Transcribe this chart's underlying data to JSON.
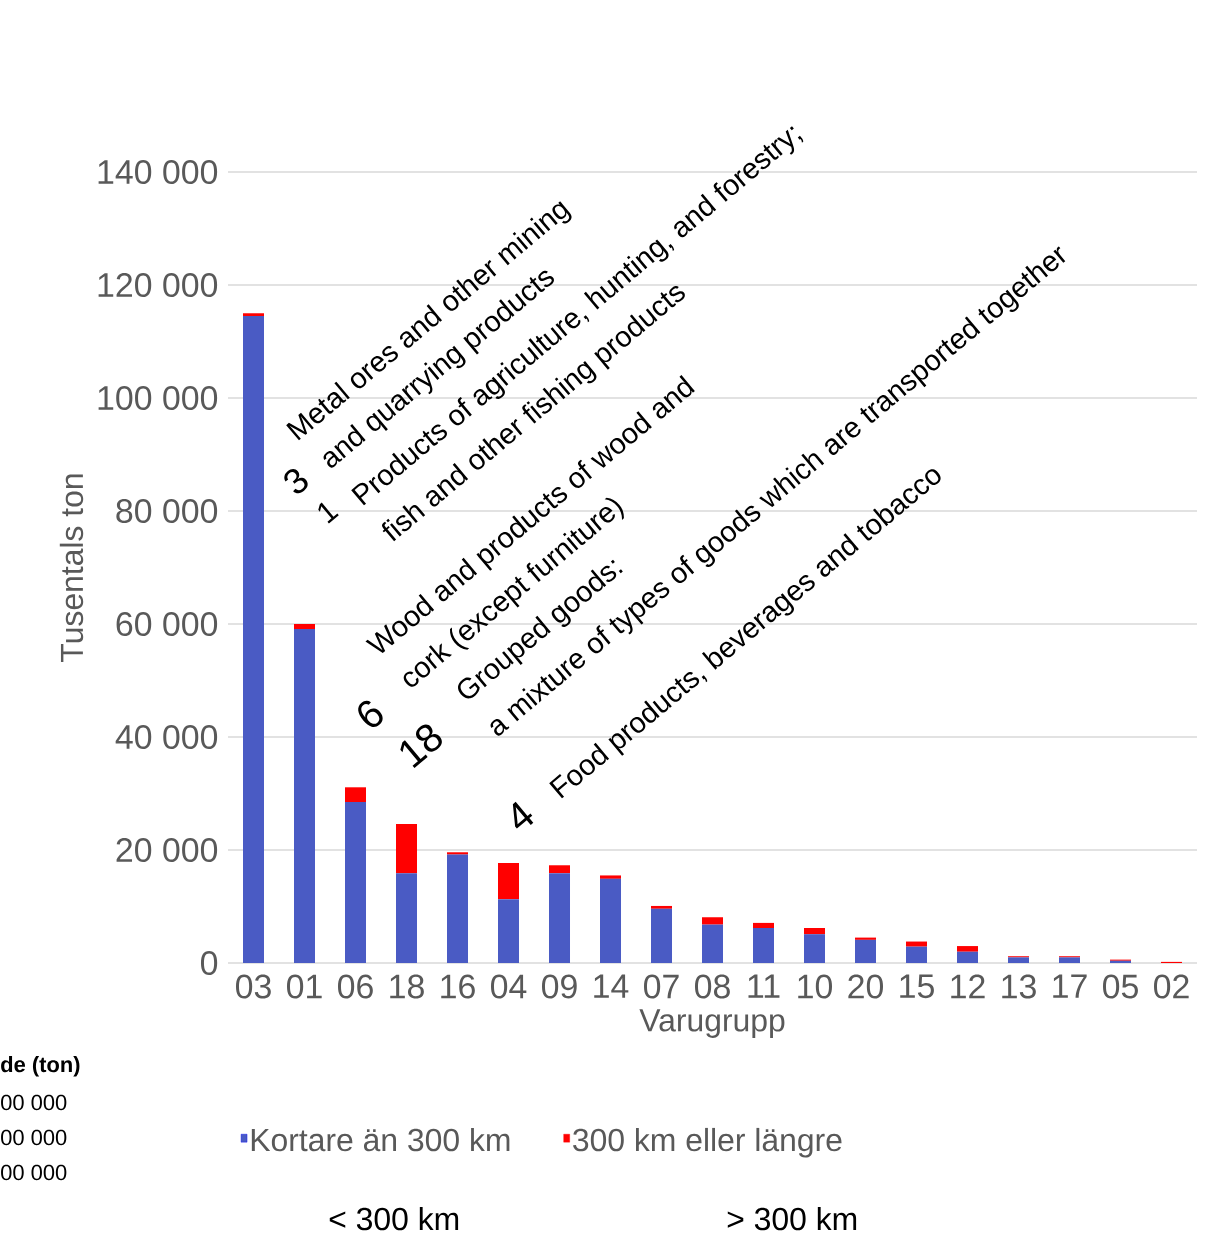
{
  "chart_data": {
    "type": "bar",
    "stacked": true,
    "xlabel": "Varugrupp",
    "ylabel": "Tusentals ton",
    "categories": [
      "03",
      "01",
      "06",
      "18",
      "16",
      "04",
      "09",
      "14",
      "07",
      "08",
      "11",
      "10",
      "20",
      "15",
      "12",
      "13",
      "17",
      "05",
      "02"
    ],
    "series": [
      {
        "name": "Kortare än 300 km",
        "color": "#4a5bc4",
        "values": [
          114500,
          59100,
          28500,
          15900,
          19200,
          11300,
          15900,
          14900,
          9600,
          6800,
          6200,
          5100,
          4100,
          2900,
          2000,
          1000,
          1000,
          400,
          0
        ]
      },
      {
        "name": "300 km eller längre",
        "color": "#ff0000",
        "values": [
          500,
          900,
          2600,
          8700,
          400,
          6400,
          1400,
          600,
          500,
          1300,
          900,
          1100,
          400,
          900,
          1000,
          200,
          200,
          200,
          200
        ]
      }
    ],
    "ylim": [
      0,
      140000
    ],
    "yticks": [
      {
        "value": 0,
        "label": "0"
      },
      {
        "value": 20000,
        "label": "20 000"
      },
      {
        "value": 40000,
        "label": "40 000"
      },
      {
        "value": 60000,
        "label": "60 000"
      },
      {
        "value": 80000,
        "label": "80 000"
      },
      {
        "value": 100000,
        "label": "100 000"
      },
      {
        "value": 120000,
        "label": "120 000"
      },
      {
        "value": 140000,
        "label": "140 000"
      }
    ],
    "grid": "y",
    "legend": "bottom",
    "annotations": [
      "Metal ores and other mining",
      "and quarrying products",
      "3",
      "Products of agriculture, hunting, and forestry;",
      "fish and other fishing products",
      "1",
      "Wood and products of wood and",
      "cork (except furniture)",
      "6",
      "Grouped goods:",
      "a mixture of types of goods which are transported together",
      "18",
      "Food products, beverages and tobacco",
      "4",
      "de (ton)",
      "00 000",
      "00 000",
      "00 000",
      "< 300 km",
      "> 300 km"
    ]
  }
}
